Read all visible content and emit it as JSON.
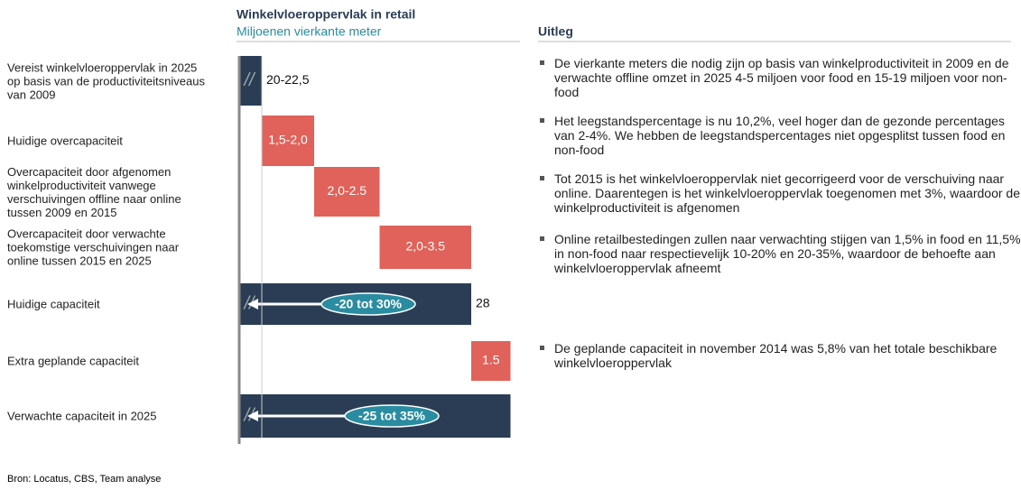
{
  "chart_data": {
    "type": "waterfall",
    "title": "Winkelvloeroppervlak in retail",
    "subtitle": "Miljoenen vierkante meter",
    "categories": [
      "Vereist winkelvloeroppervlak in 2025 op basis van de productiviteitsniveaus van 2009",
      "Huidige overcapaciteit",
      "Overcapaciteit door afgenomen winkelproductiviteit vanwege verschuivingen offline naar online tussen 2009 en 2015",
      "Overcapaciteit door verwachte toekomstige verschuivingen naar online tussen 2015 en 2025",
      "Huidige capaciteit",
      "Extra geplande capaciteit",
      "Verwachte capaciteit in 2025"
    ],
    "values": [
      [
        20,
        22.5
      ],
      [
        1.5,
        2.0
      ],
      [
        2.0,
        2.5
      ],
      [
        2.0,
        3.5
      ],
      28,
      1.5,
      null
    ],
    "value_labels": [
      "20-22,5",
      "1,5-2,0",
      "2,0-2.5",
      "2,0-3.5",
      "28",
      "1.5",
      null
    ],
    "totals": [
      true,
      false,
      false,
      false,
      true,
      false,
      true
    ],
    "total_color": "#2b3d55",
    "step_color": "#e0625a",
    "pill_color": "#2a8ca0",
    "annotations": [
      {
        "index": 4,
        "text": "-20 tot 30%"
      },
      {
        "index": 6,
        "text": "-25 tot 35%"
      }
    ]
  },
  "explanation": {
    "title": "Uitleg",
    "bullets": [
      "De vierkante meters die nodig zijn op basis van winkelproductiviteit in 2009 en de verwachte offline omzet in 2025 4-5 miljoen voor food en 15-19 miljoen voor non-food",
      "Het leegstandspercentage is nu 10,2%, veel hoger dan de gezonde percentages van 2-4%. We hebben de leegstandspercentages niet opgesplitst tussen food en non-food",
      "Tot 2015 is het winkelvloeroppervlak niet gecorrigeerd voor de verschuiving naar online. Daarentegen is het winkelvloeroppervlak toegenomen met 3%, waardoor de winkelproductiviteit is afgenomen",
      "Online retailbestedingen zullen naar verwachting stijgen van 1,5% in food en 11,5% in non-food naar respectievelijk 10-20% en 20-35%, waardoor de behoefte aan winkelvloeroppervlak afneemt",
      "De geplande capaciteit in november 2014 was 5,8% van het totale beschikbare winkelvloeroppervlak"
    ]
  },
  "source": "Bron: Locatus, CBS, Team analyse"
}
